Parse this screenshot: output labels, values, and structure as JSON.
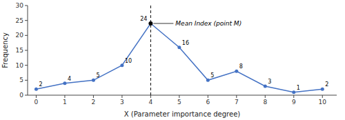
{
  "chart_data": {
    "type": "line",
    "x": [
      0,
      1,
      2,
      3,
      4,
      5,
      6,
      7,
      8,
      9,
      10
    ],
    "values": [
      2,
      4,
      5,
      10,
      24,
      16,
      5,
      8,
      3,
      1,
      2
    ],
    "color": "#4472C4",
    "marker": "circle",
    "data_labels": true,
    "grid": false,
    "xlabel": "X (Parameter importance degree)",
    "ylabel": "Frequency",
    "xlim": [
      -0.3,
      10.5
    ],
    "ylim": [
      0,
      30
    ],
    "xticks": [
      0,
      1,
      2,
      3,
      4,
      5,
      6,
      7,
      8,
      9,
      10
    ],
    "yticks": [
      0,
      5,
      10,
      15,
      20,
      25,
      30
    ],
    "annotations": [
      {
        "text": "Mean Index (point M)",
        "x": 4,
        "y": 24
      }
    ]
  }
}
